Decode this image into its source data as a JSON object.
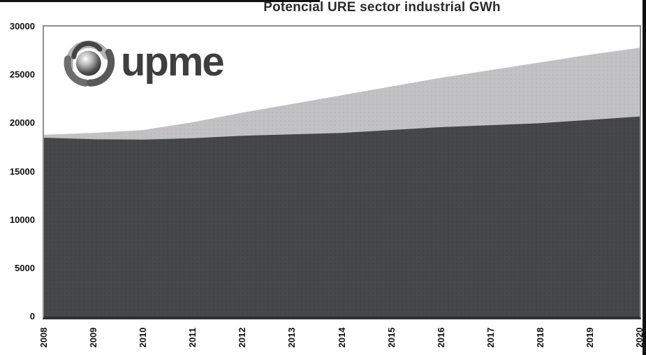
{
  "chart_data": {
    "type": "area",
    "title": "Potencial URE sector industrial GWh",
    "categories": [
      "2008",
      "2009",
      "2010",
      "2011",
      "2012",
      "2013",
      "2014",
      "2015",
      "2016",
      "2017",
      "2018",
      "2019",
      "2020"
    ],
    "series": [
      {
        "name": "area-dark-lower",
        "color": "#45474b",
        "values": [
          18500,
          18350,
          18300,
          18450,
          18700,
          18850,
          19000,
          19300,
          19600,
          19800,
          20000,
          20350,
          20700
        ]
      },
      {
        "name": "area-light-upper-total",
        "color": "#c2c2c4",
        "values": [
          18800,
          19000,
          19300,
          20100,
          21100,
          22000,
          22900,
          23800,
          24700,
          25500,
          26300,
          27100,
          27800
        ]
      }
    ],
    "xlabel": "",
    "ylabel": "",
    "ylim": [
      0,
      30000
    ],
    "y_ticks": [
      30000,
      25000,
      20000,
      15000,
      10000,
      5000,
      0
    ],
    "grid": false,
    "legend": "none"
  },
  "logo": {
    "text": "upme"
  },
  "colors": {
    "area_dark": "#45474b",
    "area_dark_dot": "#3d3f43",
    "area_light": "#c2c2c4",
    "area_light_dot": "#b6b6b8",
    "plot_border": "#8f8f8f",
    "axis_line": "#2f2f2f",
    "title_text": "#2b2b2b",
    "tick_text": "#111111",
    "frame_artifact": "#121212"
  }
}
